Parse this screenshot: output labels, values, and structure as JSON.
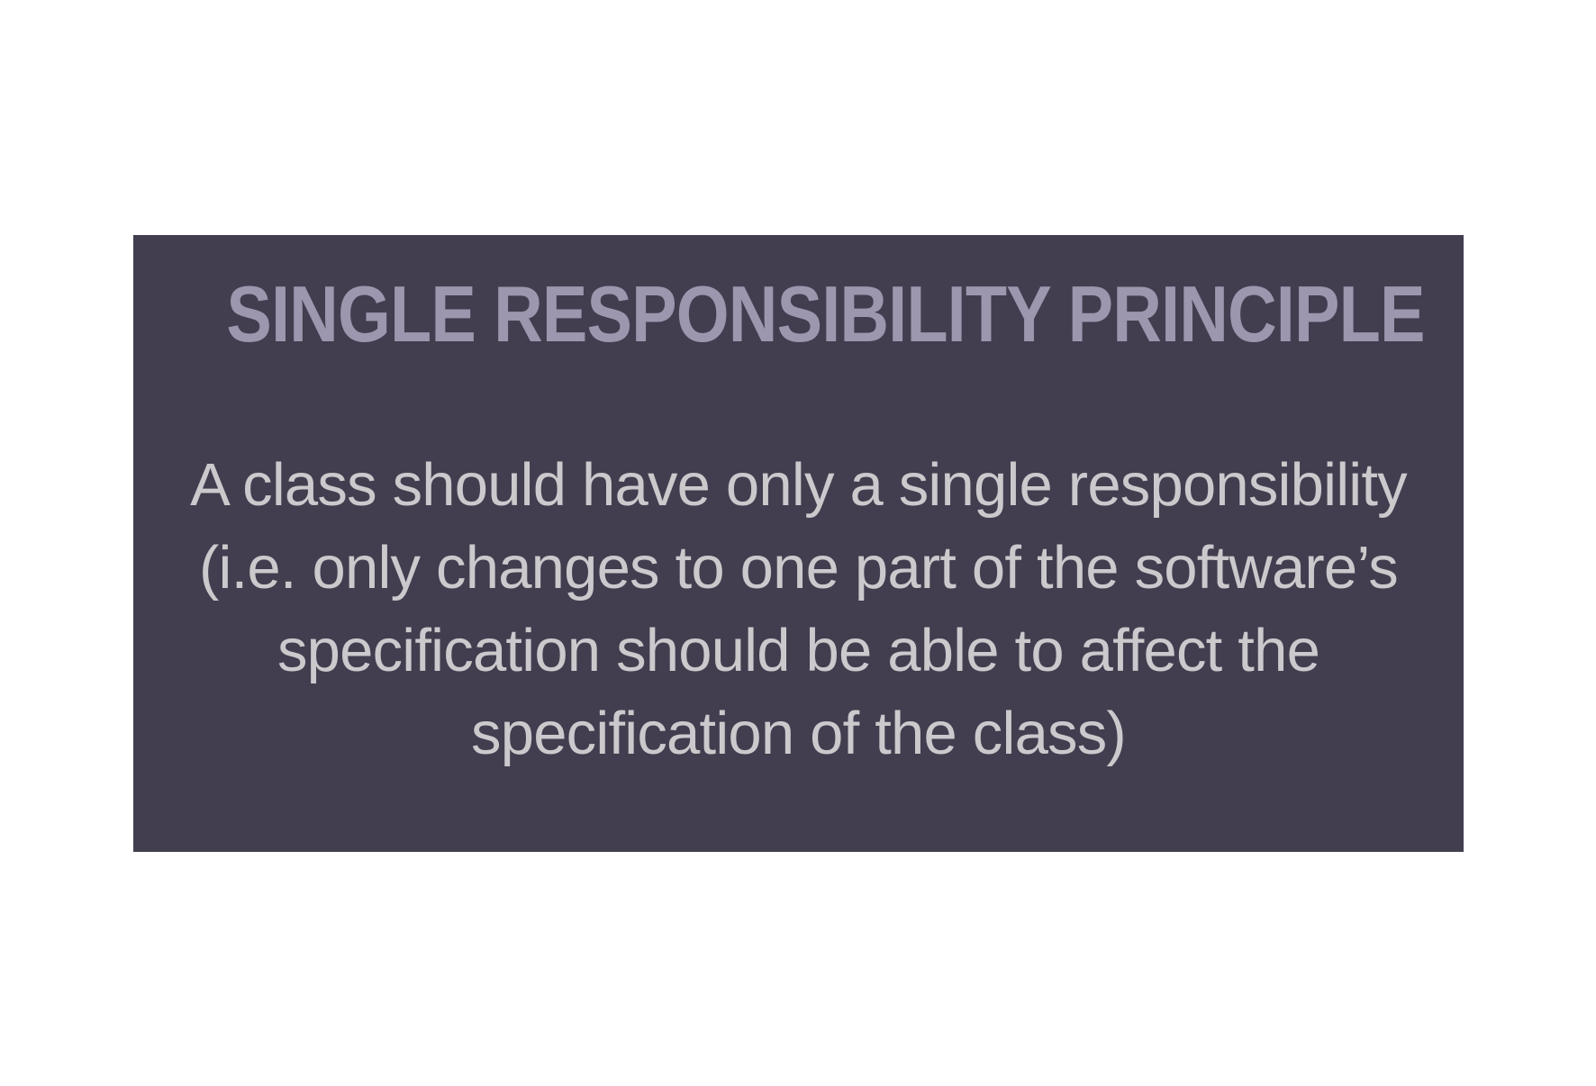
{
  "slide": {
    "title": "SINGLE RESPONSIBILITY PRINCIPLE",
    "body_lines": [
      "A class should have only a single responsibility",
      "(i.e. only changes to one part of the software’s",
      "specification should be able to affect the",
      "specification of the class)"
    ]
  },
  "colors": {
    "page_background": "#ffffff",
    "card_background": "#423e4f",
    "title_color": "#9c96ae",
    "body_color": "#cbc9cc"
  }
}
